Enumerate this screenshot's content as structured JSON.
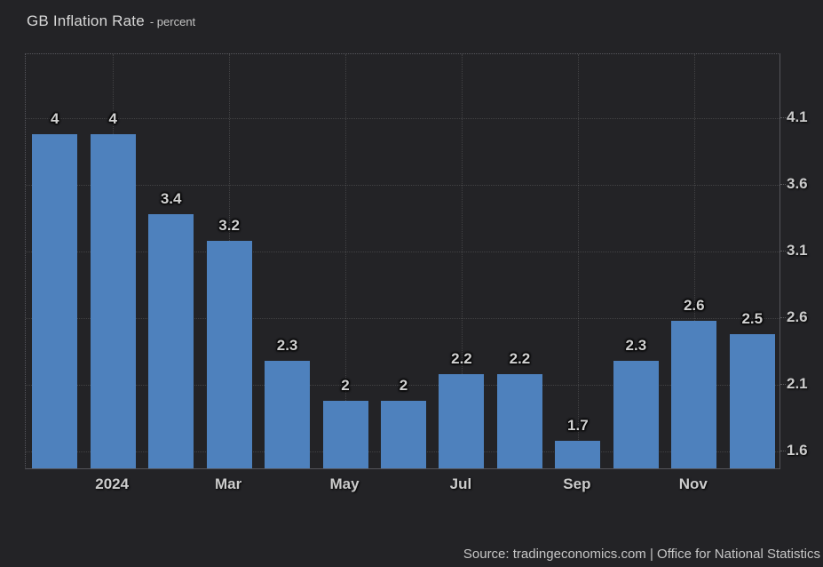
{
  "title": "GB Inflation Rate",
  "subtitle": "- percent",
  "footer": {
    "text": "Source: tradingeconomics.com | Office for National Statistics"
  },
  "colors": {
    "background": "#232326",
    "bar": "#4e81bd",
    "text": "#cccccc"
  },
  "chart_data": {
    "type": "bar",
    "title": "GB Inflation Rate",
    "ylabel": "percent",
    "categories": [
      "",
      "2024",
      "",
      "Mar",
      "",
      "May",
      "",
      "Jul",
      "",
      "Sep",
      "",
      "Nov",
      ""
    ],
    "values": [
      4,
      4,
      3.4,
      3.2,
      2.3,
      2,
      2,
      2.2,
      2.2,
      1.7,
      2.3,
      2.6,
      2.5
    ],
    "bar_labels": [
      "4",
      "4",
      "3.4",
      "3.2",
      "2.3",
      "2",
      "2",
      "2.2",
      "2.2",
      "1.7",
      "2.3",
      "2.6",
      "2.5"
    ],
    "x_tick_labels": [
      "",
      "2024",
      "",
      "Mar",
      "",
      "May",
      "",
      "Jul",
      "",
      "Sep",
      "",
      "Nov",
      ""
    ],
    "y_ticks": [
      4.1,
      3.6,
      3.1,
      2.6,
      2.1,
      1.6
    ],
    "ylim": [
      1.46,
      4.58
    ],
    "bar_baseline_value": 1.49,
    "bar_color": "#4e81bd",
    "grid": true,
    "legend": false,
    "y_axis_side": "right"
  }
}
